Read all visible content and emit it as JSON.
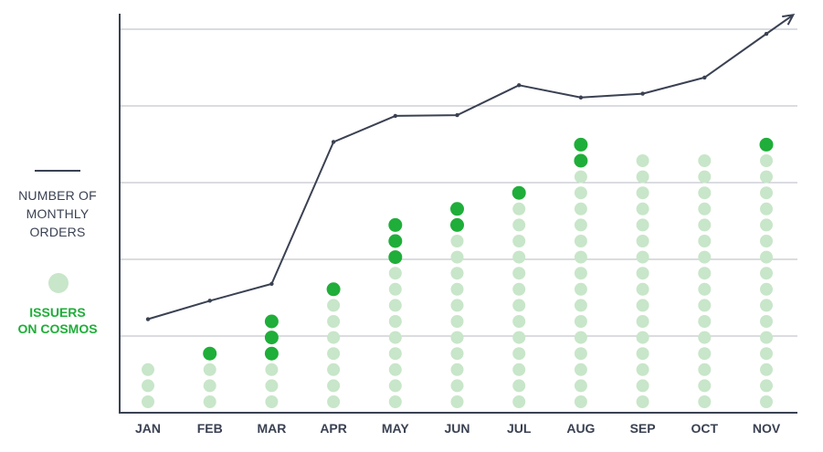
{
  "colors": {
    "axis": "#3a4152",
    "grid": "#b4b8c0",
    "line": "#3a4152",
    "dot_existing": "#c8e6c9",
    "dot_new": "#1fae39",
    "issuers_label": "#1fae39"
  },
  "legend": {
    "orders_label_lines": [
      "NUMBER OF",
      "MONTHLY",
      "ORDERS"
    ],
    "issuers_label_lines": [
      "ISSUERS",
      "ON COSMOS"
    ]
  },
  "chart_data": {
    "type": "line+dot",
    "categories": [
      "JAN",
      "FEB",
      "MAR",
      "APR",
      "MAY",
      "JUN",
      "JUL",
      "AUG",
      "SEP",
      "OCT",
      "NOV"
    ],
    "series": [
      {
        "values": [
          1.22,
          1.46,
          1.68,
          3.53,
          3.87,
          3.88,
          4.27,
          4.11,
          4.16,
          4.37,
          4.94
        ]
      },
      {
        "existing": [
          3,
          3,
          3,
          7,
          9,
          11,
          13,
          15,
          16,
          16,
          16
        ],
        "new": [
          0,
          1,
          3,
          1,
          3,
          2,
          1,
          2,
          0,
          0,
          1
        ]
      }
    ],
    "ylim": [
      0,
      5
    ],
    "arrow_end": true,
    "grid": true,
    "legend_position": "left"
  }
}
